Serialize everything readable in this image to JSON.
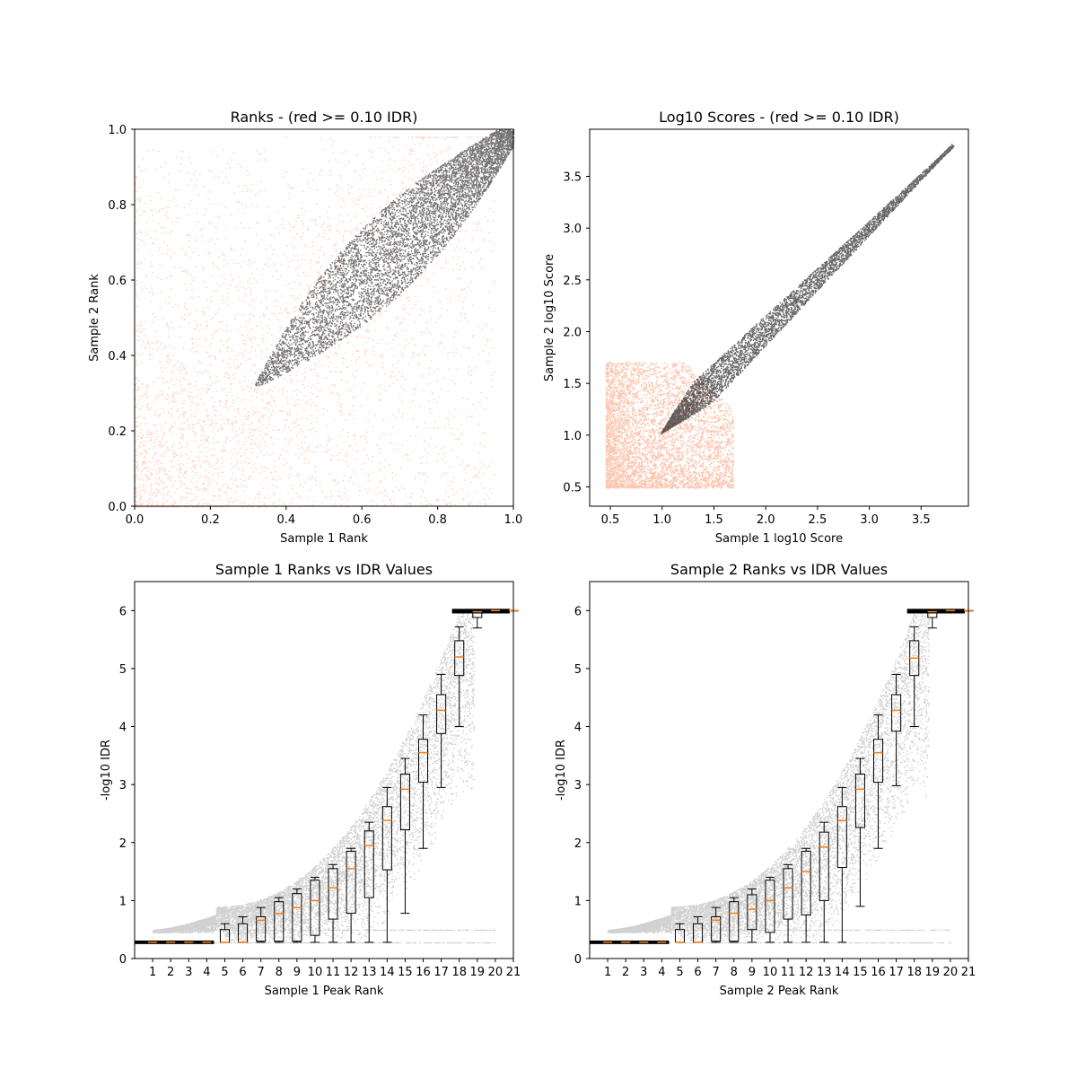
{
  "chart_data": [
    {
      "type": "scatter",
      "title": "Ranks - (red >= 0.10 IDR)",
      "xlabel": "Sample 1 Rank",
      "ylabel": "Sample 2 Rank",
      "xlim": [
        0.0,
        1.0
      ],
      "ylim": [
        0.0,
        1.0
      ],
      "xticks": [
        "0.0",
        "0.2",
        "0.4",
        "0.6",
        "0.8",
        "1.0"
      ],
      "yticks": [
        "0.0",
        "0.2",
        "0.4",
        "0.6",
        "0.8",
        "1.0"
      ],
      "grid": false,
      "series": [
        {
          "color": "#fc8d62",
          "description": "peaks with IDR >= 0.10, spread across lower ranks"
        },
        {
          "color": "#000000",
          "description": "peaks with IDR < 0.10, elongated band from (0.32,0.32) to (1.0,1.0)"
        }
      ],
      "colors": {
        "red_series": "#fc8d62",
        "black_series": "#000000"
      }
    },
    {
      "type": "scatter",
      "title": "Log10 Scores - (red >= 0.10 IDR)",
      "xlabel": "Sample 1 log10 Score",
      "ylabel": "Sample 2 log10 Score",
      "xlim": [
        0.33,
        3.9
      ],
      "ylim": [
        0.3,
        3.9
      ],
      "xticks": [
        "0.5",
        "1.0",
        "1.5",
        "2.0",
        "2.5",
        "3.0",
        "3.5"
      ],
      "yticks": [
        "0.5",
        "1.0",
        "1.5",
        "2.0",
        "2.5",
        "3.0",
        "3.5"
      ],
      "grid": false,
      "series": [
        {
          "color": "#fc8d62",
          "description": "cloud between 0.5 and ~1.6 on both axes"
        },
        {
          "color": "#000000",
          "description": "band from (1.0,1.0) to (3.75,3.75)"
        }
      ]
    },
    {
      "type": "box",
      "title": "Sample 1 Ranks vs IDR Values",
      "xlabel": "Sample 1 Peak Rank",
      "ylabel": "-log10 IDR",
      "xlim": [
        0,
        21
      ],
      "ylim": [
        0,
        6.5
      ],
      "categories": [
        "1",
        "2",
        "3",
        "4",
        "5",
        "6",
        "7",
        "8",
        "9",
        "10",
        "11",
        "12",
        "13",
        "14",
        "15",
        "16",
        "17",
        "18",
        "19",
        "20",
        "21"
      ],
      "yticks": [
        "0",
        "1",
        "2",
        "3",
        "4",
        "5",
        "6"
      ],
      "medians": [
        0.28,
        0.28,
        0.28,
        0.28,
        0.28,
        0.28,
        0.66,
        0.78,
        0.88,
        1.0,
        1.22,
        1.55,
        1.95,
        2.38,
        2.92,
        3.55,
        4.28,
        5.2,
        5.98,
        6.0,
        6.0
      ],
      "q1": [
        0.28,
        0.28,
        0.28,
        0.28,
        0.28,
        0.28,
        0.3,
        0.3,
        0.3,
        0.4,
        0.68,
        0.78,
        1.05,
        1.53,
        2.22,
        3.04,
        3.88,
        4.88,
        5.88,
        6.0,
        6.0
      ],
      "q3": [
        0.28,
        0.28,
        0.28,
        0.28,
        0.5,
        0.6,
        0.72,
        0.98,
        1.12,
        1.35,
        1.55,
        1.85,
        2.2,
        2.62,
        3.18,
        3.78,
        4.55,
        5.48,
        6.0,
        6.0,
        6.0
      ],
      "whisker_low": [
        0.28,
        0.28,
        0.28,
        0.28,
        0.28,
        0.28,
        0.28,
        0.28,
        0.28,
        0.28,
        0.28,
        0.28,
        0.28,
        0.28,
        0.78,
        1.9,
        2.95,
        4.0,
        5.7,
        6.0,
        6.0
      ],
      "whisker_high": [
        0.28,
        0.28,
        0.28,
        0.28,
        0.6,
        0.72,
        0.88,
        1.05,
        1.2,
        1.4,
        1.62,
        1.9,
        2.35,
        2.95,
        3.45,
        4.2,
        4.9,
        5.72,
        6.0,
        6.0,
        6.0
      ]
    },
    {
      "type": "box",
      "title": "Sample 2 Ranks vs IDR Values",
      "xlabel": "Sample 2 Peak Rank",
      "ylabel": "-log10 IDR",
      "xlim": [
        0,
        21
      ],
      "ylim": [
        0,
        6.5
      ],
      "categories": [
        "1",
        "2",
        "3",
        "4",
        "5",
        "6",
        "7",
        "8",
        "9",
        "10",
        "11",
        "12",
        "13",
        "14",
        "15",
        "16",
        "17",
        "18",
        "19",
        "20",
        "21"
      ],
      "yticks": [
        "0",
        "1",
        "2",
        "3",
        "4",
        "5",
        "6"
      ],
      "medians": [
        0.28,
        0.28,
        0.28,
        0.28,
        0.28,
        0.28,
        0.66,
        0.78,
        0.85,
        1.0,
        1.22,
        1.5,
        1.92,
        2.38,
        2.92,
        3.55,
        4.28,
        5.18,
        5.98,
        6.0,
        6.0
      ],
      "q1": [
        0.28,
        0.28,
        0.28,
        0.28,
        0.28,
        0.28,
        0.3,
        0.3,
        0.5,
        0.45,
        0.68,
        0.75,
        1.0,
        1.57,
        2.26,
        3.04,
        3.92,
        4.88,
        5.88,
        6.0,
        6.0
      ],
      "q3": [
        0.28,
        0.28,
        0.28,
        0.28,
        0.5,
        0.6,
        0.72,
        0.98,
        1.1,
        1.35,
        1.55,
        1.85,
        2.18,
        2.62,
        3.18,
        3.78,
        4.55,
        5.48,
        6.0,
        6.0,
        6.0
      ],
      "whisker_low": [
        0.28,
        0.28,
        0.28,
        0.28,
        0.28,
        0.28,
        0.28,
        0.28,
        0.28,
        0.28,
        0.28,
        0.28,
        0.28,
        0.28,
        0.9,
        1.9,
        2.98,
        4.0,
        5.7,
        6.0,
        6.0
      ],
      "whisker_high": [
        0.28,
        0.28,
        0.28,
        0.28,
        0.6,
        0.72,
        0.88,
        1.05,
        1.2,
        1.4,
        1.62,
        1.9,
        2.35,
        2.95,
        3.45,
        4.2,
        4.9,
        5.72,
        6.0,
        6.0,
        6.0
      ]
    }
  ]
}
